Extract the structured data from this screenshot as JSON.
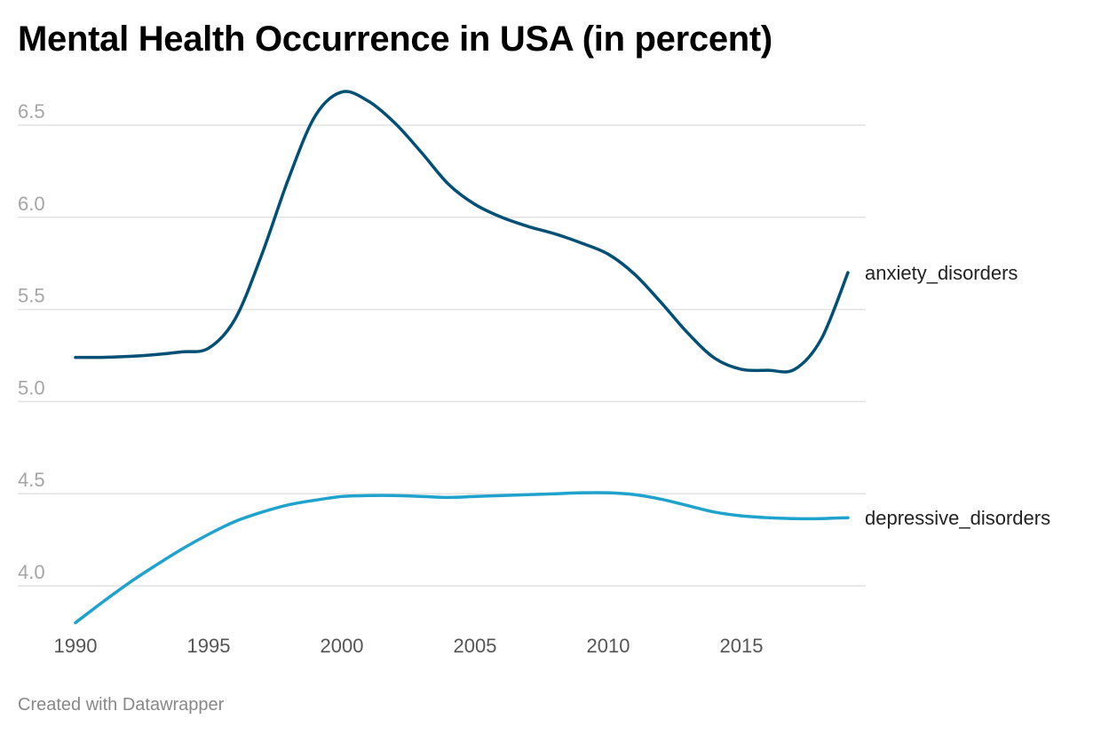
{
  "chart_data": {
    "type": "line",
    "title": "Mental Health Occurrence in USA (in percent)",
    "footer": "Created with Datawrapper",
    "xlabel": "",
    "ylabel": "",
    "x": [
      1990,
      1991,
      1992,
      1993,
      1994,
      1995,
      1996,
      1997,
      1998,
      1999,
      2000,
      2001,
      2002,
      2003,
      2004,
      2005,
      2006,
      2007,
      2008,
      2009,
      2010,
      2011,
      2012,
      2013,
      2014,
      2015,
      2016,
      2017,
      2018,
      2019
    ],
    "xlim": [
      1990,
      2019
    ],
    "ylim": [
      3.8,
      6.75
    ],
    "yticks": [
      "4.0",
      "4.5",
      "5.0",
      "5.5",
      "6.0",
      "6.5"
    ],
    "xticks": [
      "1990",
      "1995",
      "2000",
      "2005",
      "2010",
      "2015"
    ],
    "grid": true,
    "legend": "inline-right",
    "series": [
      {
        "name": "anxiety_disorders",
        "color": "#004f74",
        "values": [
          5.24,
          5.24,
          5.245,
          5.255,
          5.27,
          5.29,
          5.45,
          5.8,
          6.21,
          6.55,
          6.68,
          6.63,
          6.51,
          6.35,
          6.18,
          6.07,
          6.0,
          5.95,
          5.91,
          5.86,
          5.8,
          5.69,
          5.535,
          5.37,
          5.235,
          5.175,
          5.17,
          5.175,
          5.34,
          5.7
        ]
      },
      {
        "name": "depressive_disorders",
        "color": "#1fa2cc",
        "values": [
          3.8,
          3.91,
          4.015,
          4.11,
          4.2,
          4.28,
          4.35,
          4.4,
          4.44,
          4.465,
          4.485,
          4.49,
          4.49,
          4.485,
          4.48,
          4.485,
          4.49,
          4.495,
          4.5,
          4.505,
          4.505,
          4.495,
          4.47,
          4.435,
          4.4,
          4.38,
          4.37,
          4.365,
          4.365,
          4.37
        ]
      }
    ]
  }
}
